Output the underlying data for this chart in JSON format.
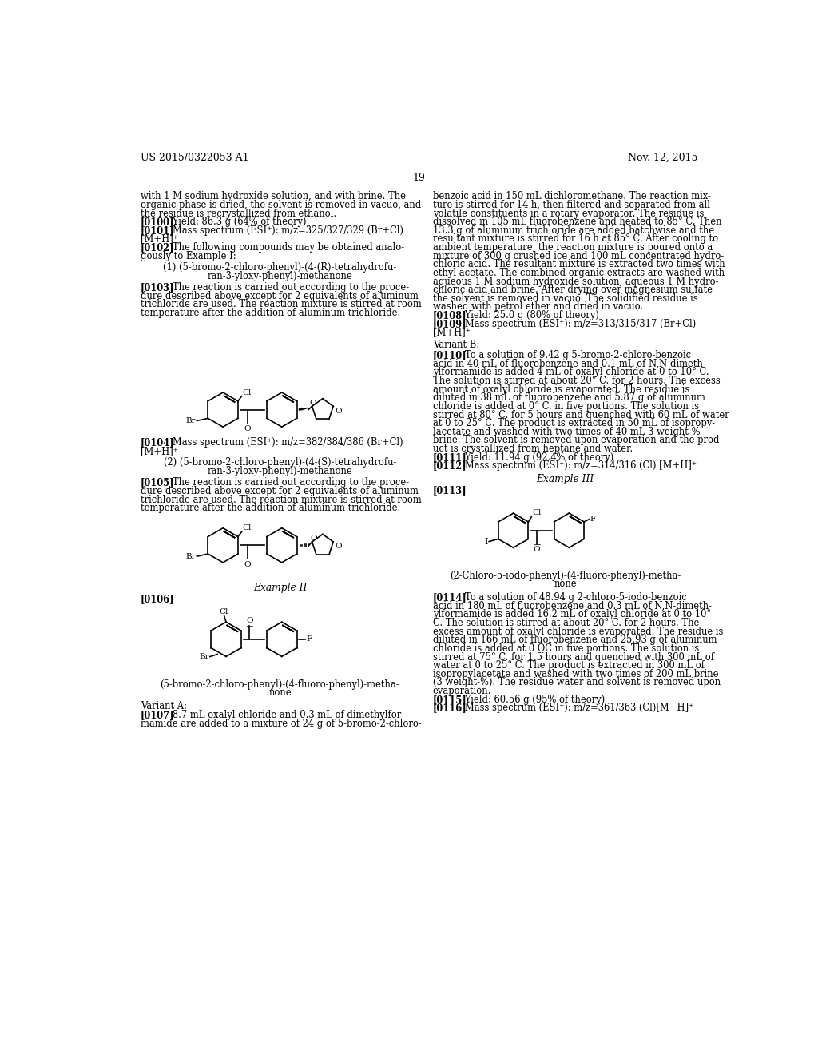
{
  "bg_color": "#ffffff",
  "header_left": "US 2015/0322053 A1",
  "header_right": "Nov. 12, 2015",
  "page_number": "19"
}
